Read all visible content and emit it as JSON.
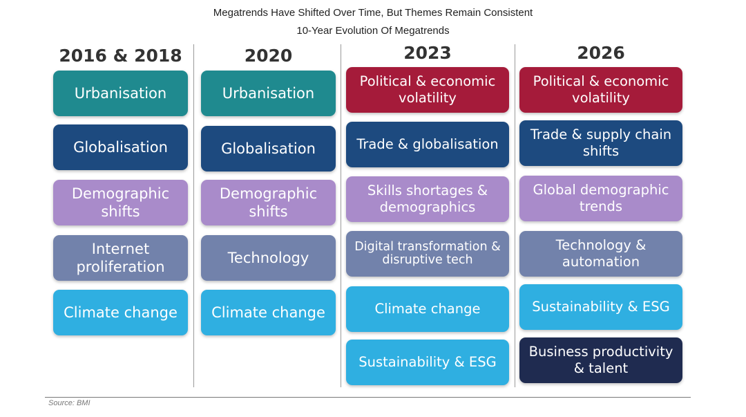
{
  "header": {
    "title": "Megatrends Have Shifted Over Time, But Themes Remain Consistent",
    "subtitle": "10-Year Evolution Of Megatrends"
  },
  "columns": [
    {
      "heading": "2016 & 2018",
      "items": [
        "Urbanisation",
        "Globalisation",
        "Demographic shifts",
        "Internet proliferation",
        "Climate change"
      ]
    },
    {
      "heading": "2020",
      "items": [
        "Urbanisation",
        "Globalisation",
        "Demographic shifts",
        "Technology",
        "Climate change"
      ]
    },
    {
      "heading": "2023",
      "items": [
        "Political & economic volatility",
        "Trade & globalisation",
        "Skills shortages & demographics",
        "Digital transformation & disruptive tech",
        "Climate change",
        "Sustainability & ESG"
      ]
    },
    {
      "heading": "2026",
      "items": [
        "Political & economic volatility",
        "Trade & supply chain shifts",
        "Global demographic trends",
        "Technology & automation",
        "Sustainability & ESG",
        "Business productivity & talent"
      ]
    }
  ],
  "source": "Source: BMI"
}
